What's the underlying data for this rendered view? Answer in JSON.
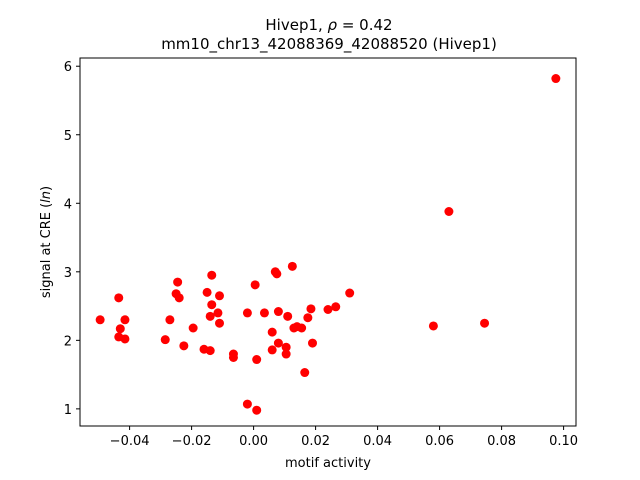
{
  "chart_data": {
    "type": "scatter",
    "title_line1": "Hivep1, ρ = 0.42",
    "title_line2": "mm10_chr13_42088369_42088520 (Hivep1)",
    "xlabel": "motif activity",
    "ylabel": "signal at CRE (ln)",
    "xlim": [
      -0.056,
      0.104
    ],
    "ylim": [
      0.75,
      6.12
    ],
    "xticks": [
      -0.04,
      -0.02,
      0.0,
      0.02,
      0.04,
      0.06,
      0.08,
      0.1
    ],
    "xtick_labels": [
      "−0.04",
      "−0.02",
      "0.00",
      "0.02",
      "0.04",
      "0.06",
      "0.08",
      "0.10"
    ],
    "yticks": [
      1,
      2,
      3,
      4,
      5,
      6
    ],
    "ytick_labels": [
      "1",
      "2",
      "3",
      "4",
      "5",
      "6"
    ],
    "grid": false,
    "legend": "none",
    "color": "#ff0000",
    "points": [
      {
        "x": -0.0495,
        "y": 2.3
      },
      {
        "x": -0.0435,
        "y": 2.62
      },
      {
        "x": -0.043,
        "y": 2.17
      },
      {
        "x": -0.0435,
        "y": 2.05
      },
      {
        "x": -0.0415,
        "y": 2.3
      },
      {
        "x": -0.0415,
        "y": 2.02
      },
      {
        "x": -0.0285,
        "y": 2.01
      },
      {
        "x": -0.027,
        "y": 2.3
      },
      {
        "x": -0.0245,
        "y": 2.85
      },
      {
        "x": -0.025,
        "y": 2.68
      },
      {
        "x": -0.024,
        "y": 2.62
      },
      {
        "x": -0.0225,
        "y": 1.92
      },
      {
        "x": -0.0195,
        "y": 2.18
      },
      {
        "x": -0.016,
        "y": 1.87
      },
      {
        "x": -0.015,
        "y": 2.7
      },
      {
        "x": -0.014,
        "y": 1.85
      },
      {
        "x": -0.0135,
        "y": 2.95
      },
      {
        "x": -0.0135,
        "y": 2.52
      },
      {
        "x": -0.014,
        "y": 2.35
      },
      {
        "x": -0.0115,
        "y": 2.4
      },
      {
        "x": -0.011,
        "y": 2.65
      },
      {
        "x": -0.011,
        "y": 2.25
      },
      {
        "x": -0.0065,
        "y": 1.8
      },
      {
        "x": -0.0065,
        "y": 1.75
      },
      {
        "x": -0.002,
        "y": 2.4
      },
      {
        "x": -0.002,
        "y": 1.07
      },
      {
        "x": 0.0005,
        "y": 2.81
      },
      {
        "x": 0.001,
        "y": 1.72
      },
      {
        "x": 0.001,
        "y": 0.98
      },
      {
        "x": 0.0035,
        "y": 2.4
      },
      {
        "x": 0.006,
        "y": 2.12
      },
      {
        "x": 0.006,
        "y": 1.86
      },
      {
        "x": 0.007,
        "y": 3.0
      },
      {
        "x": 0.0075,
        "y": 2.97
      },
      {
        "x": 0.008,
        "y": 2.42
      },
      {
        "x": 0.008,
        "y": 1.96
      },
      {
        "x": 0.0105,
        "y": 1.9
      },
      {
        "x": 0.0105,
        "y": 1.8
      },
      {
        "x": 0.011,
        "y": 2.35
      },
      {
        "x": 0.0125,
        "y": 3.08
      },
      {
        "x": 0.013,
        "y": 2.18
      },
      {
        "x": 0.014,
        "y": 2.2
      },
      {
        "x": 0.0155,
        "y": 2.18
      },
      {
        "x": 0.0165,
        "y": 1.53
      },
      {
        "x": 0.0175,
        "y": 2.33
      },
      {
        "x": 0.0185,
        "y": 2.46
      },
      {
        "x": 0.019,
        "y": 1.96
      },
      {
        "x": 0.024,
        "y": 2.45
      },
      {
        "x": 0.0265,
        "y": 2.49
      },
      {
        "x": 0.031,
        "y": 2.69
      },
      {
        "x": 0.058,
        "y": 2.21
      },
      {
        "x": 0.063,
        "y": 3.88
      },
      {
        "x": 0.0745,
        "y": 2.25
      },
      {
        "x": 0.0975,
        "y": 5.82
      }
    ]
  }
}
